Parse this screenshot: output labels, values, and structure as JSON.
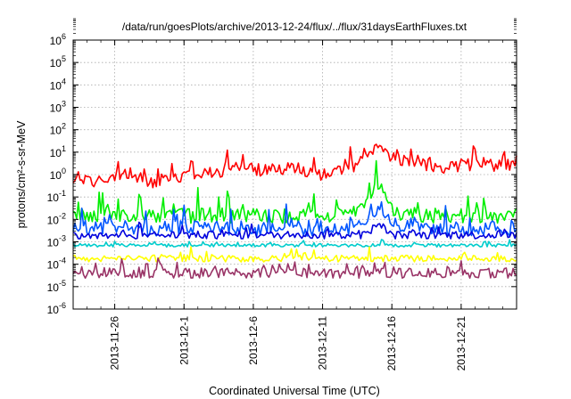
{
  "chart_data": {
    "type": "line",
    "title": "/data/run/goesPlots/archive/2013-12-24/flux/../flux/31daysEarthFluxes.txt",
    "xlabel": "Coordinated Universal Time (UTC)",
    "ylabel": "protons/cm²-s-sr-MeV",
    "yscale": "log",
    "ylim": [
      1e-06,
      1000000.0
    ],
    "xlim": [
      "2013-11-23",
      "2013-12-25"
    ],
    "grid": true,
    "legend": "none",
    "x_ticks": [
      "2013-11-26",
      "2013-12-1",
      "2013-12-6",
      "2013-12-11",
      "2013-12-16",
      "2013-12-21"
    ],
    "y_ticks": [
      {
        "base": "10",
        "exp": "6"
      },
      {
        "base": "10",
        "exp": "5"
      },
      {
        "base": "10",
        "exp": "4"
      },
      {
        "base": "10",
        "exp": "3"
      },
      {
        "base": "10",
        "exp": "2"
      },
      {
        "base": "10",
        "exp": "1"
      },
      {
        "base": "10",
        "exp": "0"
      },
      {
        "base": "10",
        "exp": "-1"
      },
      {
        "base": "10",
        "exp": "-2"
      },
      {
        "base": "10",
        "exp": "-3"
      },
      {
        "base": "10",
        "exp": "-4"
      },
      {
        "base": "10",
        "exp": "-5"
      },
      {
        "base": "10",
        "exp": "-6"
      }
    ],
    "series": [
      {
        "color": "#ff0000",
        "x": [
          "2013-11-23",
          "2013-11-25",
          "2013-11-27",
          "2013-11-29",
          "2013-12-01",
          "2013-12-03",
          "2013-12-05",
          "2013-12-07",
          "2013-12-09",
          "2013-12-11",
          "2013-12-13",
          "2013-12-14",
          "2013-12-15",
          "2013-12-16",
          "2013-12-18",
          "2013-12-20",
          "2013-12-22",
          "2013-12-24",
          "2013-12-25"
        ],
        "values": [
          0.6,
          0.5,
          1.0,
          0.4,
          1.0,
          1.2,
          2.0,
          1.5,
          2.0,
          1.0,
          2.0,
          5.0,
          15,
          6.0,
          3.0,
          2.0,
          3.0,
          2.5,
          3.0
        ],
        "noise": 0.55
      },
      {
        "color": "#00ee00",
        "x": [
          "2013-11-23",
          "2013-12-05",
          "2013-12-13",
          "2013-12-14",
          "2013-12-15",
          "2013-12-16",
          "2013-12-17",
          "2013-12-25"
        ],
        "values": [
          0.015,
          0.015,
          0.015,
          0.04,
          0.3,
          0.03,
          0.015,
          0.015
        ],
        "noise": 0.7
      },
      {
        "color": "#0055ff",
        "x": [
          "2013-11-23",
          "2013-12-13",
          "2013-12-14",
          "2013-12-15",
          "2013-12-16",
          "2013-12-17",
          "2013-12-25"
        ],
        "values": [
          0.004,
          0.004,
          0.006,
          0.03,
          0.008,
          0.004,
          0.004
        ],
        "noise": 0.7
      },
      {
        "color": "#0000dd",
        "x": [
          "2013-11-23",
          "2013-12-14",
          "2013-12-15",
          "2013-12-16",
          "2013-12-25"
        ],
        "values": [
          0.002,
          0.002,
          0.006,
          0.002,
          0.002
        ],
        "noise": 0.35
      },
      {
        "color": "#00cccc",
        "x": [
          "2013-11-23",
          "2013-12-25"
        ],
        "values": [
          0.0007,
          0.0007
        ],
        "noise": 0.15
      },
      {
        "color": "#ffff00",
        "x": [
          "2013-11-23",
          "2013-12-25"
        ],
        "values": [
          0.00018,
          0.00018
        ],
        "noise": 0.3
      },
      {
        "color": "#993366",
        "x": [
          "2013-11-23",
          "2013-12-25"
        ],
        "values": [
          4e-05,
          4e-05
        ],
        "noise": 0.45
      }
    ]
  }
}
